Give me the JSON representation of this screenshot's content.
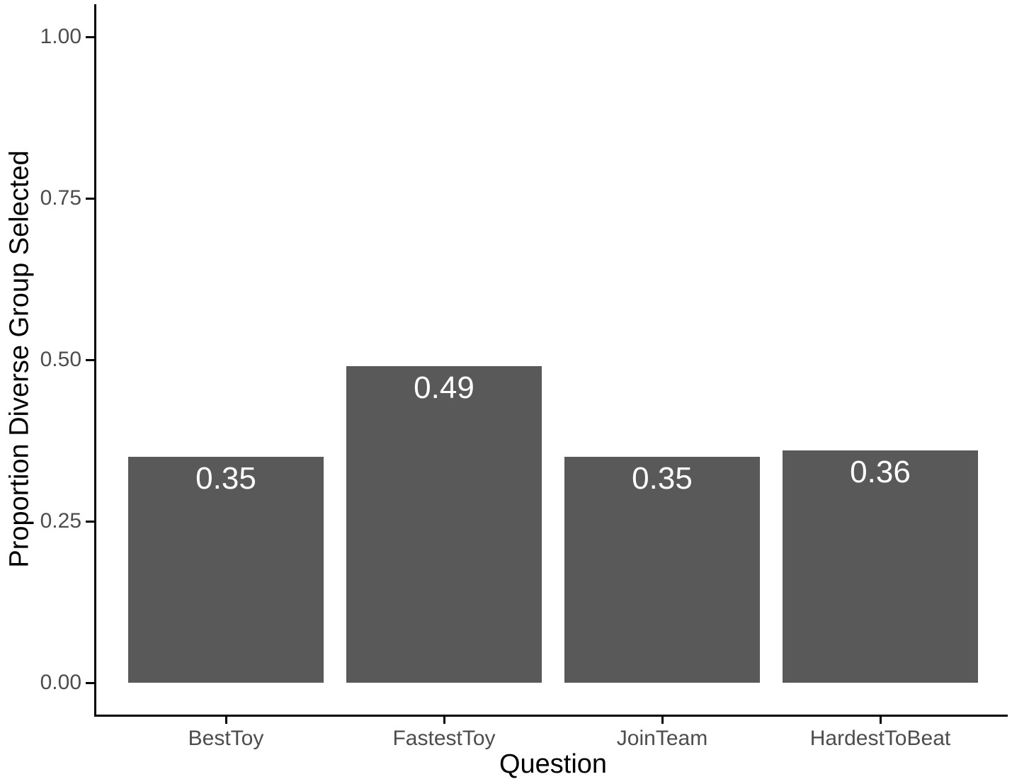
{
  "figure": {
    "background": "#ffffff"
  },
  "chart_data": {
    "type": "bar",
    "title": "",
    "xlabel": "Question",
    "ylabel": "Proportion Diverse Group Selected",
    "categories": [
      "BestToy",
      "FastestToy",
      "JoinTeam",
      "HardestToBeat"
    ],
    "values": [
      0.35,
      0.49,
      0.35,
      0.36
    ],
    "bar_labels": [
      "0.35",
      "0.49",
      "0.35",
      "0.36"
    ],
    "ylim": [
      0,
      1
    ],
    "yticks": {
      "values": [
        0,
        0.25,
        0.5,
        0.75,
        1
      ],
      "labels": [
        "0.00",
        "0.25",
        "0.50",
        "0.75",
        "1.00"
      ]
    },
    "grid": false,
    "legend": "none",
    "colors": {
      "bar_fill": "#595959",
      "bar_label_text": "#ffffff",
      "axis_line": "#000000",
      "tick_text": "#4d4d4d",
      "title_text": "#000000"
    }
  }
}
